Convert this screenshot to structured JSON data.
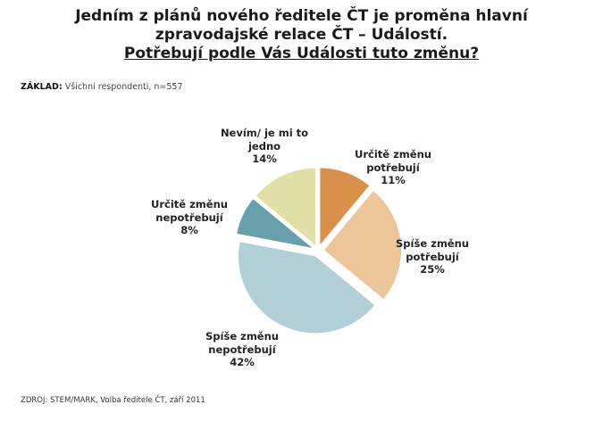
{
  "title": {
    "line1": "Jedním z plánů nového ředitele ČT je proměna hlavní",
    "line2": "zpravodajské relace ČT – Událostí.",
    "line3": "Potřebují podle Vás Události tuto změnu?"
  },
  "base": {
    "label": "ZÁKLAD:",
    "text": "Všichni respondenti, n=557"
  },
  "source": "ZDROJ: STEM/MARK, Volba ředitele ČT, září 2011",
  "chart_data": {
    "type": "pie",
    "slices": [
      {
        "name": "Určitě změnu potřebují",
        "line1": "Určitě změnu",
        "line2": "potřebují",
        "value": 11,
        "label": "11%",
        "color": "#D9904A"
      },
      {
        "name": "Spíše změnu potřebují",
        "line1": "Spíše změnu",
        "line2": "potřebují",
        "value": 25,
        "label": "25%",
        "color": "#ECC598"
      },
      {
        "name": "Spíše změnu nepotřebují",
        "line1": "Spíše změnu",
        "line2": "nepotřebují",
        "value": 42,
        "label": "42%",
        "color": "#B1CFD6"
      },
      {
        "name": "Určitě změnu nepotřebují",
        "line1": "Určitě změnu",
        "line2": "nepotřebují",
        "value": 8,
        "label": "8%",
        "color": "#679FAD"
      },
      {
        "name": "Nevím/ je mi to jedno",
        "line1": "Nevím/ je mi to",
        "line2": "jedno",
        "value": 14,
        "label": "14%",
        "color": "#E0DFA6"
      }
    ],
    "start": "12 o'clock",
    "direction": "clockwise",
    "exploded": true
  }
}
